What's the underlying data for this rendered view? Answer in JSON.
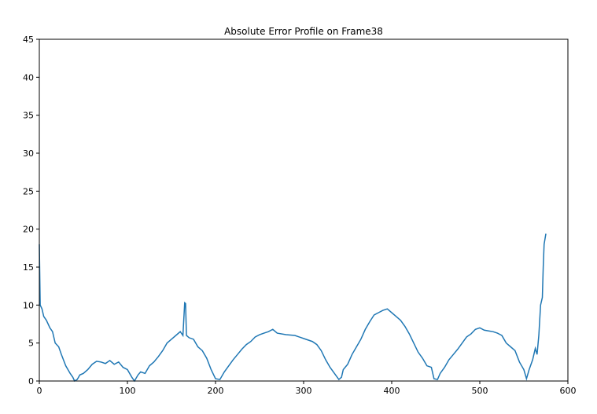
{
  "chart_data": {
    "type": "line",
    "title": "Absolute Error Profile on Frame38",
    "x": [
      0,
      1,
      3,
      5,
      8,
      12,
      15,
      18,
      22,
      25,
      30,
      35,
      38,
      40,
      43,
      46,
      50,
      55,
      60,
      65,
      70,
      75,
      80,
      85,
      90,
      95,
      100,
      105,
      108,
      112,
      115,
      120,
      125,
      130,
      135,
      140,
      145,
      150,
      155,
      160,
      163,
      165,
      166,
      167,
      170,
      175,
      180,
      185,
      190,
      195,
      200,
      205,
      210,
      215,
      220,
      225,
      230,
      235,
      240,
      245,
      250,
      255,
      260,
      265,
      270,
      280,
      290,
      300,
      310,
      315,
      320,
      325,
      330,
      335,
      340,
      343,
      345,
      350,
      355,
      360,
      365,
      370,
      375,
      380,
      385,
      390,
      395,
      400,
      405,
      410,
      415,
      420,
      425,
      430,
      435,
      440,
      445,
      448,
      452,
      455,
      460,
      465,
      470,
      475,
      480,
      485,
      490,
      495,
      500,
      505,
      510,
      515,
      520,
      525,
      530,
      535,
      540,
      545,
      550,
      553,
      556,
      560,
      563,
      565,
      567,
      569,
      571,
      572,
      573,
      575
    ],
    "series": [
      {
        "name": "Absolute error",
        "color": "#1f77b4",
        "values": [
          18,
          10,
          9.5,
          8.5,
          8,
          7,
          6.5,
          5,
          4.5,
          3.5,
          2,
          1,
          0.5,
          0,
          0.2,
          0.8,
          1,
          1.5,
          2.2,
          2.6,
          2.5,
          2.3,
          2.7,
          2.2,
          2.5,
          1.8,
          1.5,
          0.5,
          0,
          0.8,
          1.2,
          1,
          2,
          2.5,
          3.2,
          4,
          5,
          5.5,
          6,
          6.5,
          6,
          10.3,
          10.2,
          6,
          5.7,
          5.5,
          4.5,
          4,
          3,
          1.5,
          0.3,
          0.2,
          1.2,
          2,
          2.8,
          3.5,
          4.2,
          4.8,
          5.2,
          5.8,
          6.1,
          6.3,
          6.5,
          6.8,
          6.3,
          6.1,
          6,
          5.6,
          5.2,
          4.8,
          4,
          2.8,
          1.8,
          1,
          0.2,
          0.5,
          1.5,
          2.2,
          3.5,
          4.5,
          5.5,
          6.8,
          7.8,
          8.7,
          9,
          9.3,
          9.5,
          9,
          8.5,
          8,
          7.2,
          6.2,
          5,
          3.8,
          3,
          2,
          1.8,
          0.3,
          0.2,
          1,
          1.8,
          2.8,
          3.5,
          4.2,
          5,
          5.8,
          6.2,
          6.8,
          7,
          6.7,
          6.6,
          6.5,
          6.3,
          6,
          5,
          4.5,
          4,
          2.5,
          1.5,
          0.3,
          1.5,
          2.8,
          4.3,
          3.5,
          6,
          10,
          11,
          15,
          18,
          19.4
        ]
      }
    ],
    "xlim": [
      0,
      600
    ],
    "xticks": [
      0,
      100,
      200,
      300,
      400,
      500,
      600
    ],
    "ylim": [
      0,
      45
    ],
    "yticks": [
      0,
      5,
      10,
      15,
      20,
      25,
      30,
      35,
      40,
      45
    ],
    "grid": false
  }
}
